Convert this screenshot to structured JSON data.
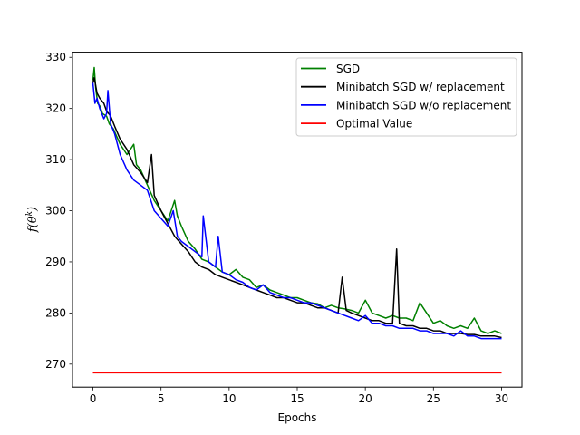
{
  "chart_data": {
    "type": "line",
    "xlabel": "Epochs",
    "ylabel": "f(θ^k)",
    "xlim": [
      -1.5,
      31.5
    ],
    "ylim": [
      265.5,
      331.0
    ],
    "x_ticks": [
      0,
      5,
      10,
      15,
      20,
      25,
      30
    ],
    "y_ticks": [
      270,
      280,
      290,
      300,
      310,
      320,
      330
    ],
    "legend_location": "top-right",
    "grid": false,
    "series": [
      {
        "name": "SGD",
        "color": "#008000",
        "x": [
          0,
          0.1,
          0.2,
          0.35,
          0.5,
          0.7,
          1.0,
          1.2,
          1.5,
          2.0,
          2.5,
          3.0,
          3.2,
          3.5,
          4.0,
          4.5,
          5.0,
          5.5,
          6.0,
          6.2,
          6.5,
          7.0,
          7.5,
          8.0,
          8.5,
          9.0,
          9.5,
          10.0,
          10.5,
          11.0,
          11.5,
          12.0,
          12.5,
          13.0,
          13.5,
          14.0,
          14.5,
          15.0,
          15.5,
          16.0,
          16.5,
          17.0,
          17.5,
          18.0,
          18.5,
          19.0,
          19.5,
          20.0,
          20.5,
          21.0,
          21.5,
          22.0,
          22.5,
          23.0,
          23.5,
          24.0,
          24.5,
          25.0,
          25.5,
          26.0,
          26.5,
          27.0,
          27.5,
          28.0,
          28.5,
          29.0,
          29.5,
          30.0
        ],
        "y": [
          325.5,
          328.0,
          324.0,
          321.0,
          320.5,
          319.0,
          318.5,
          317.0,
          316.0,
          313.0,
          311.0,
          313.0,
          309.0,
          308.0,
          305.0,
          302.0,
          300.0,
          298.0,
          302.0,
          299.0,
          297.0,
          294.0,
          292.5,
          290.5,
          290.0,
          289.0,
          288.0,
          287.5,
          288.5,
          287.0,
          286.5,
          285.0,
          285.5,
          284.5,
          284.0,
          283.5,
          283.0,
          283.0,
          282.5,
          282.0,
          281.8,
          281.0,
          281.5,
          281.0,
          280.8,
          280.5,
          280.0,
          282.5,
          280.0,
          279.5,
          279.0,
          279.5,
          279.0,
          279.0,
          278.5,
          282.0,
          280.0,
          278.0,
          278.5,
          277.5,
          277.0,
          277.5,
          277.0,
          279.0,
          276.5,
          276.0,
          276.5,
          276.0
        ]
      },
      {
        "name": "Minibatch SGD w/ replacement",
        "color": "#000000",
        "x": [
          0,
          0.1,
          0.3,
          0.5,
          0.8,
          1.0,
          1.3,
          1.6,
          2.0,
          2.5,
          3.0,
          3.5,
          4.0,
          4.3,
          4.5,
          5.0,
          5.5,
          6.0,
          6.5,
          7.0,
          7.5,
          8.0,
          8.5,
          9.0,
          9.5,
          10.0,
          10.5,
          11.0,
          11.5,
          12.0,
          12.5,
          13.0,
          13.5,
          14.0,
          14.5,
          15.0,
          15.5,
          16.0,
          16.5,
          17.0,
          17.5,
          18.0,
          18.3,
          18.6,
          19.0,
          19.5,
          20.0,
          20.5,
          21.0,
          21.5,
          22.0,
          22.3,
          22.5,
          23.0,
          23.5,
          24.0,
          24.5,
          25.0,
          25.5,
          26.0,
          26.5,
          27.0,
          27.5,
          28.0,
          28.5,
          29.0,
          29.5,
          30.0
        ],
        "y": [
          325.0,
          326.0,
          323.0,
          322.0,
          321.0,
          319.5,
          318.5,
          316.5,
          314.0,
          312.0,
          309.0,
          307.5,
          305.5,
          311.0,
          303.0,
          300.0,
          297.5,
          295.0,
          293.5,
          292.0,
          290.0,
          289.0,
          288.5,
          287.5,
          287.0,
          286.5,
          286.0,
          285.5,
          285.0,
          284.5,
          284.0,
          283.5,
          283.0,
          283.0,
          282.5,
          282.0,
          282.0,
          281.5,
          281.0,
          281.0,
          280.5,
          280.0,
          287.0,
          280.5,
          280.0,
          279.5,
          279.0,
          278.5,
          278.5,
          278.0,
          278.0,
          292.5,
          278.0,
          277.5,
          277.5,
          277.0,
          277.0,
          276.5,
          276.5,
          276.0,
          276.0,
          276.0,
          275.8,
          275.8,
          275.5,
          275.5,
          275.5,
          275.2
        ]
      },
      {
        "name": "Minibatch SGD w/o replacement",
        "color": "#0000ff",
        "x": [
          0,
          0.15,
          0.3,
          0.5,
          0.8,
          1.0,
          1.1,
          1.3,
          1.6,
          2.0,
          2.5,
          3.0,
          3.5,
          4.0,
          4.5,
          5.0,
          5.5,
          5.9,
          6.2,
          6.5,
          7.0,
          7.5,
          8.0,
          8.1,
          8.5,
          9.0,
          9.2,
          9.5,
          10.0,
          10.5,
          11.0,
          11.5,
          12.0,
          12.5,
          13.0,
          13.5,
          14.0,
          14.5,
          15.0,
          15.5,
          16.0,
          16.5,
          17.0,
          17.5,
          18.0,
          18.5,
          19.0,
          19.5,
          20.0,
          20.5,
          21.0,
          21.5,
          22.0,
          22.5,
          23.0,
          23.5,
          24.0,
          24.5,
          25.0,
          25.5,
          26.0,
          26.5,
          27.0,
          27.5,
          28.0,
          28.5,
          29.0,
          29.5,
          30.0
        ],
        "y": [
          325.0,
          321.0,
          322.0,
          320.0,
          318.0,
          319.0,
          323.5,
          317.0,
          315.0,
          311.0,
          308.0,
          306.0,
          305.0,
          304.0,
          300.0,
          298.5,
          297.0,
          300.0,
          295.0,
          294.0,
          293.0,
          292.0,
          291.0,
          299.0,
          290.0,
          289.0,
          295.0,
          288.0,
          287.5,
          286.5,
          286.0,
          285.0,
          284.5,
          285.5,
          284.0,
          283.5,
          283.0,
          283.0,
          282.5,
          282.0,
          282.0,
          281.5,
          281.0,
          280.5,
          280.0,
          279.5,
          279.0,
          278.5,
          279.5,
          278.0,
          278.0,
          277.5,
          277.5,
          277.0,
          277.0,
          277.0,
          276.5,
          276.5,
          276.0,
          276.0,
          276.0,
          275.5,
          276.5,
          275.5,
          275.5,
          275.0,
          275.0,
          275.0,
          275.0
        ]
      },
      {
        "name": "Optimal Value",
        "color": "#ff0000",
        "x": [
          0,
          30
        ],
        "y": [
          268.3,
          268.3
        ]
      }
    ]
  }
}
